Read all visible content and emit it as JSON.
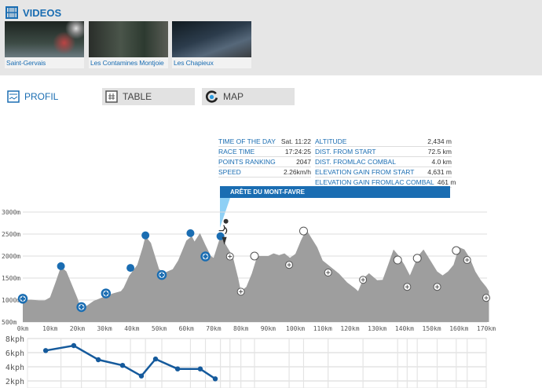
{
  "videos": {
    "title": "VIDEOS",
    "icon": "film-icon",
    "items": [
      {
        "label": "Saint-Gervais"
      },
      {
        "label": "Les Contamines Montjoie"
      },
      {
        "label": "Les Chapieux"
      }
    ]
  },
  "tabs": [
    {
      "label": "PROFIL",
      "icon": "profile-icon",
      "active": true
    },
    {
      "label": "TABLE",
      "icon": "table-icon",
      "active": false
    },
    {
      "label": "MAP",
      "icon": "map-icon",
      "active": false
    }
  ],
  "info": {
    "left": [
      {
        "k": "TIME OF THE DAY",
        "v": "Sat. 11:22"
      },
      {
        "k": "RACE TIME",
        "v": "17:24:25"
      },
      {
        "k": "POINTS RANKING",
        "v": "2047"
      },
      {
        "k": "SPEED",
        "v": "2.26km/h"
      }
    ],
    "right": [
      {
        "k": "ALTITUDE",
        "v": "2,434 m"
      },
      {
        "k": "DIST. FROM START",
        "v": "72.5 km"
      },
      {
        "k": "DIST. FROMLAC COMBAL",
        "v": "4.0 km"
      },
      {
        "k": "ELEVATION GAIN FROM START",
        "v": "4,631 m"
      },
      {
        "k": "ELEVATION GAIN FROMLAC COMBAL",
        "v": "461 m"
      }
    ],
    "location": "ARÊTE DU MONT-FAVRE"
  },
  "colors": {
    "accent": "#1a6db2",
    "area": "#9e9e9e"
  },
  "chart_data": [
    {
      "type": "area",
      "ylim": [
        500,
        3000
      ],
      "xlim": [
        0,
        170
      ],
      "yticks": [
        "500m",
        "1000m",
        "1500m",
        "2000m",
        "2500m",
        "3000m"
      ],
      "xticks": [
        "0km",
        "10km",
        "20km",
        "30km",
        "40km",
        "50km",
        "60km",
        "70km",
        "80km",
        "90km",
        "100km",
        "110km",
        "120km",
        "130km",
        "140km",
        "150km",
        "160km",
        "170km"
      ],
      "profile": [
        [
          0,
          1000
        ],
        [
          3,
          1010
        ],
        [
          6,
          990
        ],
        [
          8,
          990
        ],
        [
          10,
          1060
        ],
        [
          12,
          1400
        ],
        [
          14,
          1760
        ],
        [
          16,
          1650
        ],
        [
          18,
          1350
        ],
        [
          20,
          1050
        ],
        [
          21,
          870
        ],
        [
          23,
          850
        ],
        [
          26,
          980
        ],
        [
          30,
          1080
        ],
        [
          33,
          1150
        ],
        [
          36,
          1200
        ],
        [
          37,
          1280
        ],
        [
          39,
          1550
        ],
        [
          42,
          1800
        ],
        [
          44,
          2200
        ],
        [
          45,
          2450
        ],
        [
          47,
          2300
        ],
        [
          49,
          1900
        ],
        [
          50,
          1700
        ],
        [
          52,
          1620
        ],
        [
          55,
          1700
        ],
        [
          57,
          1900
        ],
        [
          60,
          2350
        ],
        [
          62,
          2450
        ],
        [
          63,
          2330
        ],
        [
          65,
          2520
        ],
        [
          67,
          2250
        ],
        [
          69,
          2000
        ],
        [
          70,
          1960
        ],
        [
          72,
          2350
        ],
        [
          73,
          2430
        ],
        [
          75,
          2200
        ],
        [
          77,
          2000
        ],
        [
          79,
          1500
        ],
        [
          80,
          1200
        ],
        [
          82,
          1300
        ],
        [
          84,
          1600
        ],
        [
          86,
          2000
        ],
        [
          90,
          2000
        ],
        [
          92,
          2060
        ],
        [
          94,
          2020
        ],
        [
          96,
          2060
        ],
        [
          98,
          1960
        ],
        [
          100,
          2050
        ],
        [
          102,
          2350
        ],
        [
          104,
          2600
        ],
        [
          106,
          2400
        ],
        [
          108,
          2200
        ],
        [
          110,
          1900
        ],
        [
          113,
          1750
        ],
        [
          116,
          1600
        ],
        [
          119,
          1400
        ],
        [
          122,
          1260
        ],
        [
          123,
          1200
        ],
        [
          125,
          1500
        ],
        [
          127,
          1610
        ],
        [
          130,
          1450
        ],
        [
          132,
          1460
        ],
        [
          134,
          1800
        ],
        [
          136,
          2150
        ],
        [
          138,
          2000
        ],
        [
          140,
          1800
        ],
        [
          142,
          1560
        ],
        [
          145,
          2000
        ],
        [
          147,
          2150
        ],
        [
          149,
          1950
        ],
        [
          152,
          1650
        ],
        [
          154,
          1560
        ],
        [
          156,
          1650
        ],
        [
          158,
          1800
        ],
        [
          160,
          2200
        ],
        [
          162,
          2150
        ],
        [
          164,
          1950
        ],
        [
          166,
          1650
        ],
        [
          168,
          1450
        ],
        [
          170,
          1300
        ],
        [
          171,
          1200
        ]
      ],
      "markers": [
        {
          "km": 0,
          "m": 1030,
          "kind": "passed-aid"
        },
        {
          "km": 14,
          "m": 1770,
          "kind": "passed-summit"
        },
        {
          "km": 21.5,
          "m": 840,
          "kind": "passed-aid"
        },
        {
          "km": 30.5,
          "m": 1150,
          "kind": "passed-aid"
        },
        {
          "km": 39.5,
          "m": 1730,
          "kind": "passed-summit"
        },
        {
          "km": 45,
          "m": 2470,
          "kind": "passed-summit"
        },
        {
          "km": 51,
          "m": 1570,
          "kind": "passed-aid"
        },
        {
          "km": 61.5,
          "m": 2520,
          "kind": "passed-summit"
        },
        {
          "km": 67,
          "m": 1990,
          "kind": "passed-aid"
        },
        {
          "km": 72.5,
          "m": 2450,
          "kind": "passed-summit"
        },
        {
          "km": 76,
          "m": 1990,
          "kind": "aid"
        },
        {
          "km": 80,
          "m": 1190,
          "kind": "aid"
        },
        {
          "km": 85,
          "m": 2000,
          "kind": "summit"
        },
        {
          "km": 97.7,
          "m": 1800,
          "kind": "aid"
        },
        {
          "km": 103,
          "m": 2570,
          "kind": "summit"
        },
        {
          "km": 112,
          "m": 1625,
          "kind": "aid"
        },
        {
          "km": 124.8,
          "m": 1460,
          "kind": "aid"
        },
        {
          "km": 137.5,
          "m": 1910,
          "kind": "summit"
        },
        {
          "km": 141,
          "m": 1300,
          "kind": "aid"
        },
        {
          "km": 144.7,
          "m": 1950,
          "kind": "summit"
        },
        {
          "km": 152,
          "m": 1300,
          "kind": "aid"
        },
        {
          "km": 159,
          "m": 2125,
          "kind": "summit"
        },
        {
          "km": 163,
          "m": 1910,
          "kind": "aid"
        },
        {
          "km": 170,
          "m": 1050,
          "kind": "aid"
        }
      ],
      "runner": {
        "km": 72.5,
        "m": 2434
      }
    },
    {
      "type": "line",
      "ylim": [
        2,
        8
      ],
      "yticks": [
        "2kph",
        "4kph",
        "6kph",
        "8kph"
      ],
      "x": [
        8.4,
        18.7,
        27.7,
        36.6,
        43.5,
        48.7,
        56.8,
        65.1,
        70.6
      ],
      "values": [
        6.3,
        7.0,
        5.0,
        4.2,
        2.7,
        5.1,
        3.7,
        3.7,
        2.3
      ]
    }
  ]
}
